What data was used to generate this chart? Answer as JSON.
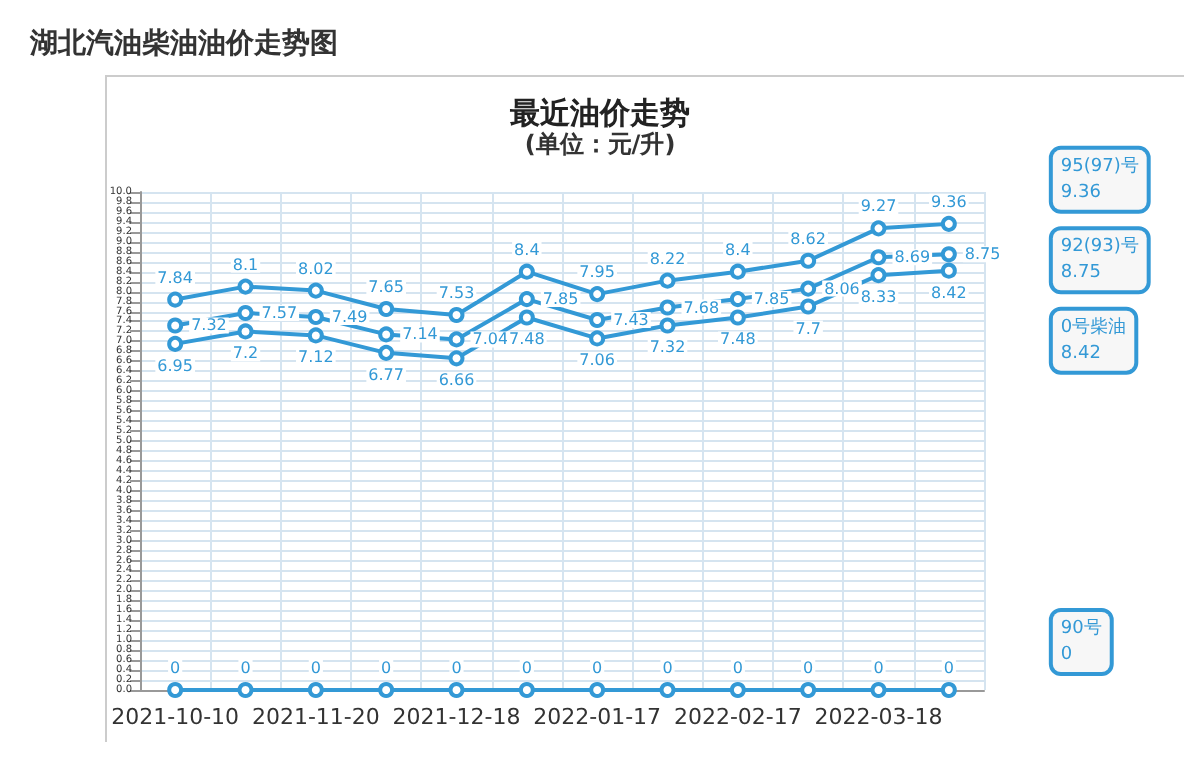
{
  "chart_data": {
    "type": "line",
    "title": "湖北汽油柴油油价走势图",
    "subtitle": "最近油价走势",
    "annotations": [
      "(单位：元/升)",
      "9.36",
      "8.75",
      "8.42",
      "0"
    ],
    "categories": [
      "2021-10-10",
      null,
      "2021-11-20",
      null,
      "2021-12-18",
      null,
      "2022-01-17",
      null,
      "2022-02-17",
      null,
      "2022-03-18",
      null
    ],
    "series": [
      {
        "name": "95(97)号",
        "color": "#3399d6",
        "values": [
          7.84,
          8.1,
          8.02,
          7.65,
          7.53,
          8.4,
          7.95,
          8.22,
          8.4,
          8.62,
          9.27,
          9.36
        ]
      },
      {
        "name": "92(93)号",
        "color": "#3399d6",
        "values": [
          7.32,
          7.57,
          7.49,
          7.14,
          7.04,
          7.85,
          7.43,
          7.68,
          7.85,
          8.06,
          8.69,
          8.75
        ]
      },
      {
        "name": "0号柴油",
        "color": "#3399d6",
        "values": [
          6.95,
          7.2,
          7.12,
          6.77,
          6.66,
          7.48,
          7.06,
          7.32,
          7.48,
          7.7,
          8.33,
          8.42
        ]
      },
      {
        "name": "90号",
        "color": "#3399d6",
        "values": [
          0,
          0,
          0,
          0,
          0,
          0,
          0,
          0,
          0,
          0,
          0,
          0
        ]
      }
    ],
    "ylim": [
      0,
      10
    ],
    "yticks": [
      {
        "value": 0,
        "label": "0.0"
      },
      0.2,
      0.4,
      0.6,
      0.8,
      {
        "value": 1,
        "label": "1.0"
      },
      1.2,
      1.4,
      1.6,
      1.8,
      {
        "value": 2,
        "label": "2.0"
      },
      2.2,
      2.4,
      2.6,
      2.8,
      {
        "value": 3,
        "label": "3.0"
      },
      3.2,
      3.4,
      3.6,
      3.8,
      {
        "value": 4,
        "label": "4.0"
      },
      4.2,
      4.4,
      4.6,
      4.8,
      {
        "value": 5,
        "label": "5.0"
      },
      5.2,
      5.4,
      5.6,
      5.8,
      {
        "value": 6,
        "label": "6.0"
      },
      6.2,
      6.4,
      6.6,
      6.8,
      {
        "value": 7,
        "label": "7.0"
      },
      7.2,
      7.4,
      7.6,
      7.8,
      {
        "value": 8,
        "label": "8.0"
      },
      8.2,
      8.4,
      8.6,
      8.8,
      {
        "value": 9,
        "label": "9.0"
      },
      9.2,
      9.4,
      9.6,
      9.8,
      {
        "value": 10,
        "label": "10.0"
      }
    ],
    "grid": true,
    "legend": false,
    "marker": "circle",
    "line_style": "solid",
    "data_labels": true
  }
}
